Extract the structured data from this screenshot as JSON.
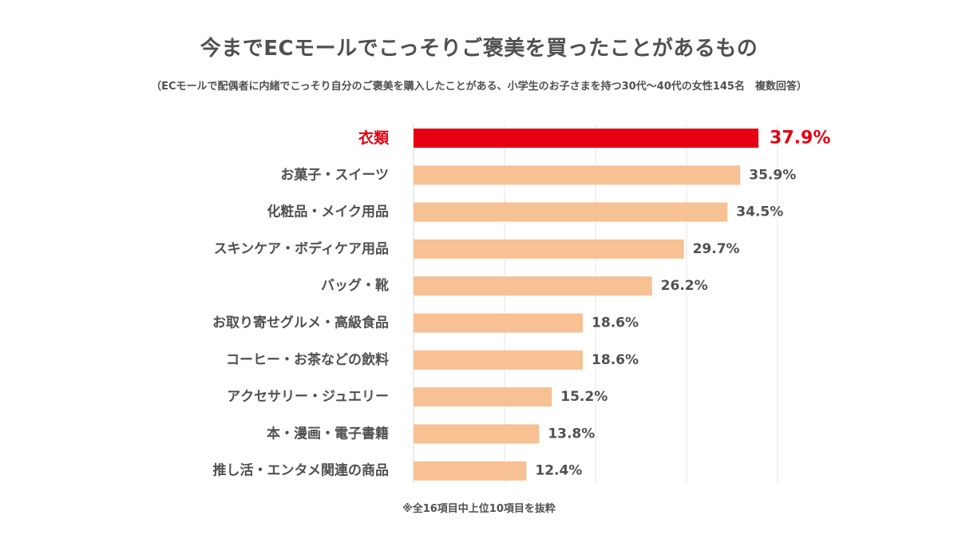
{
  "chart_data": {
    "type": "bar",
    "orientation": "horizontal",
    "title": "今までECモールでこっそりご褒美を買ったことがあるもの",
    "subtitle": "（ECモールで配偶者に内緒でこっそり自分のご褒美を購入したことがある、小学生のお子さまを持つ30代〜40代の女性145名　複数回答）",
    "footnote": "※全16項目中上位10項目を抜粋",
    "categories": [
      "衣類",
      "お菓子・スイーツ",
      "化粧品・メイク用品",
      "スキンケア・ボディケア用品",
      "バッグ・靴",
      "お取り寄せグルメ・高級食品",
      "コーヒー・お茶などの飲料",
      "アクセサリー・ジュエリー",
      "本・漫画・電子書籍",
      "推し活・エンタメ関連の商品"
    ],
    "values": [
      37.9,
      35.9,
      34.5,
      29.7,
      26.2,
      18.6,
      18.6,
      15.2,
      13.8,
      12.4
    ],
    "value_labels": [
      "37.9%",
      "35.9%",
      "34.5%",
      "29.7%",
      "26.2%",
      "18.6%",
      "18.6%",
      "15.2%",
      "13.8%",
      "12.4%"
    ],
    "unit": "%",
    "xlim": [
      0,
      40
    ],
    "highlight_index": 0,
    "grid": true,
    "legend": "none",
    "colors": {
      "highlight": "#e60012",
      "bar": "#f7c193",
      "grid": "#e6e6e6",
      "text": "#505050"
    }
  }
}
